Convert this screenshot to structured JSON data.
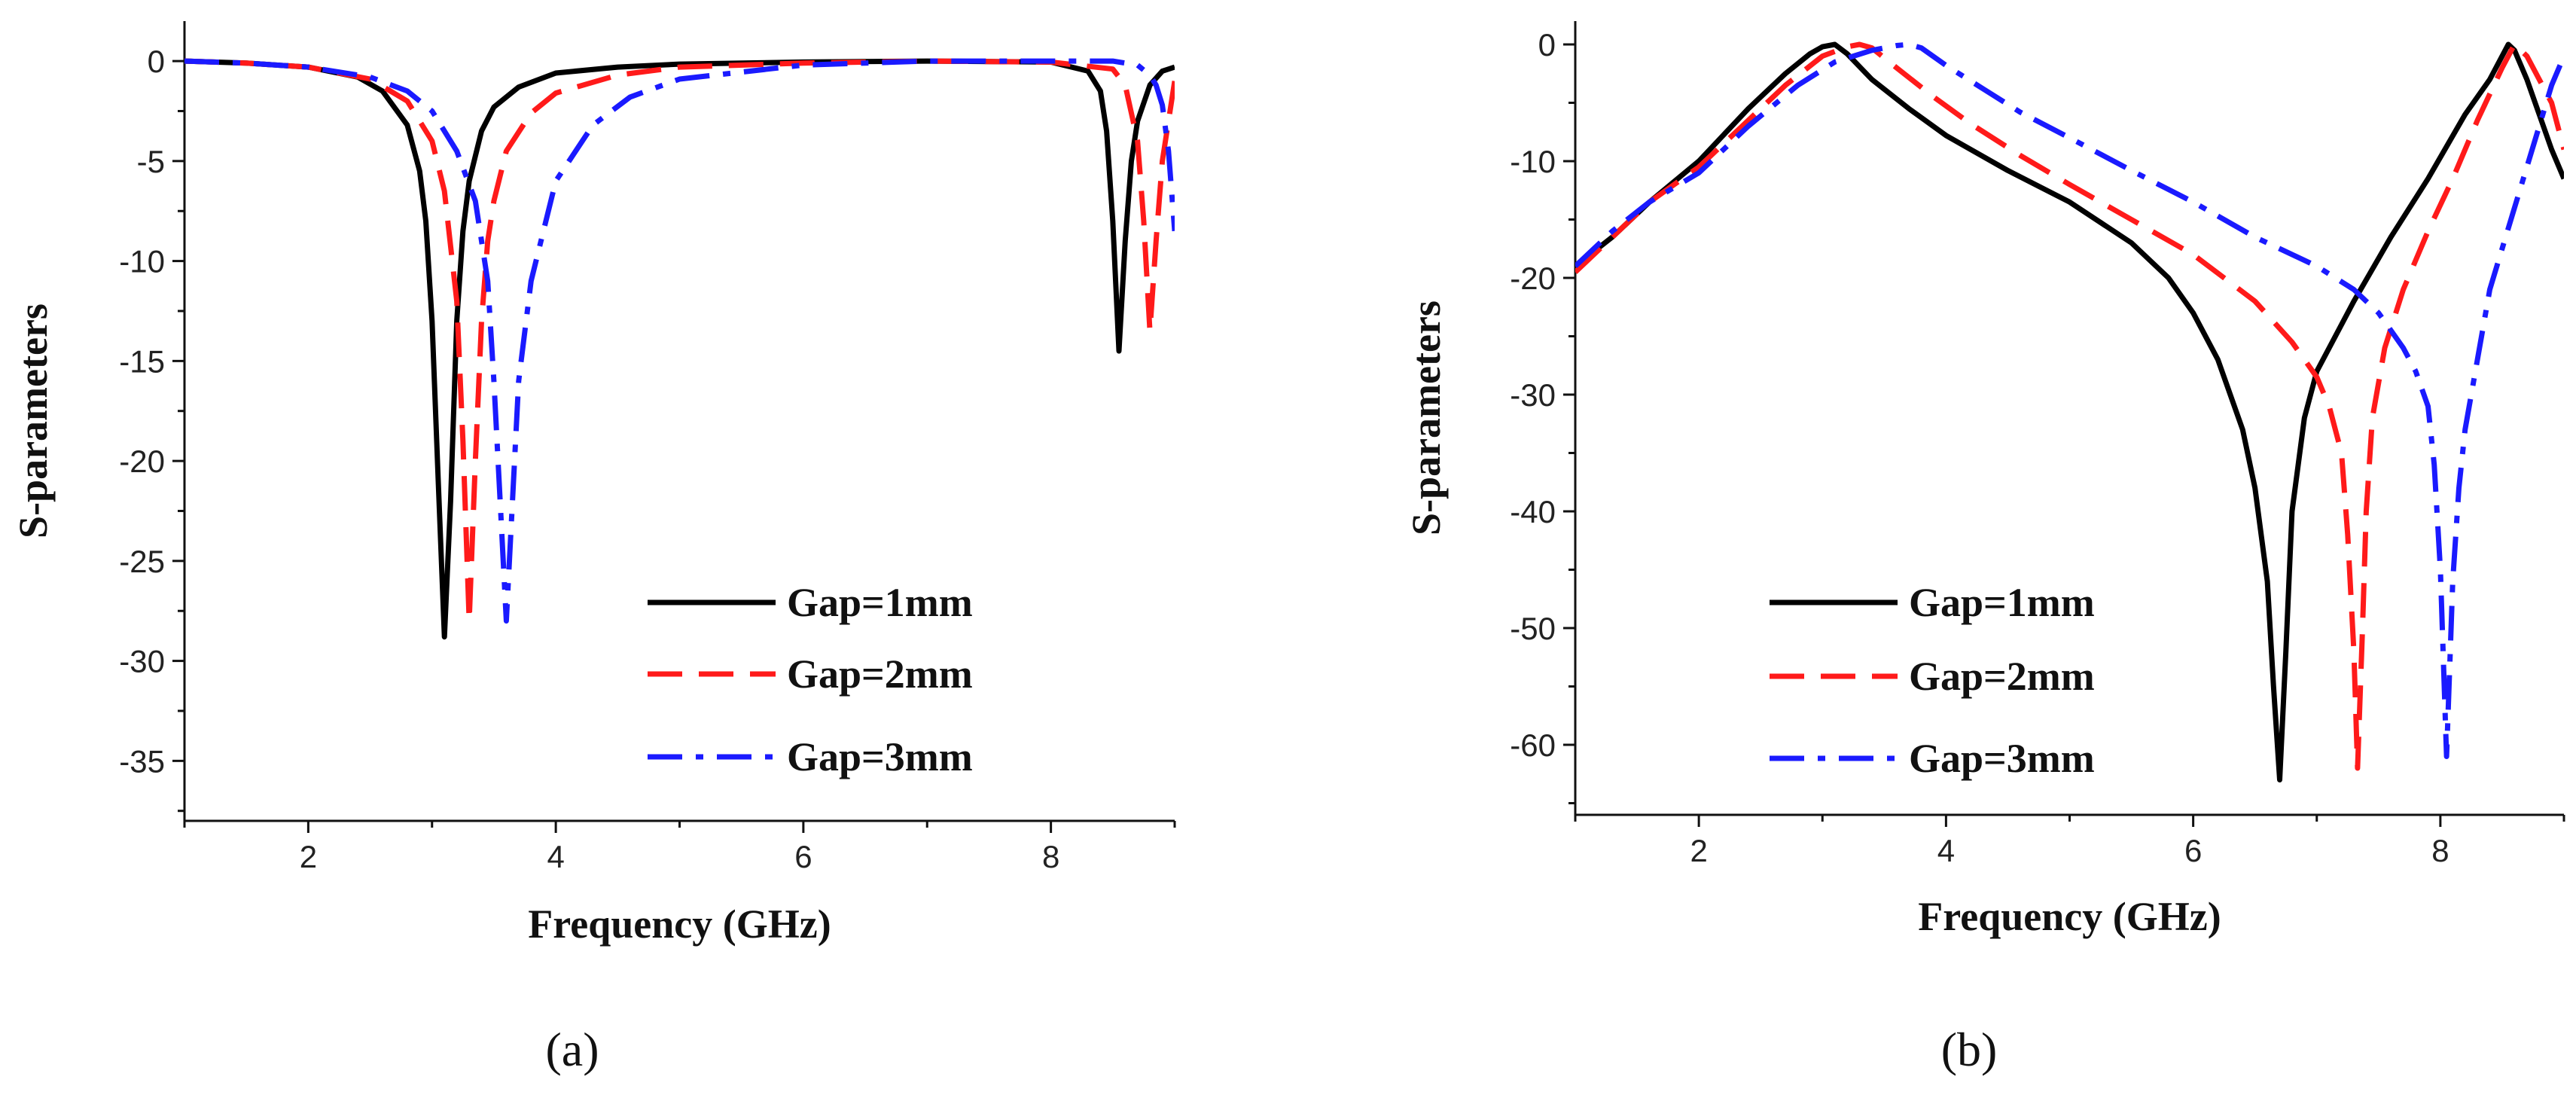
{
  "chart_data": [
    {
      "type": "line",
      "panel_label": "(a)",
      "title": "",
      "xlabel": "Frequency (GHz)",
      "ylabel": "S-parameters",
      "xlim": [
        1,
        9
      ],
      "ylim": [
        -38,
        2
      ],
      "xticks": [
        2,
        4,
        6,
        8
      ],
      "xtick_labels": [
        "2",
        "4",
        "6",
        "8"
      ],
      "yticks": [
        0,
        -5,
        -10,
        -15,
        -20,
        -25,
        -30,
        -35
      ],
      "ytick_labels": [
        "0",
        "-5",
        "-10",
        "-15",
        "-20",
        "-25",
        "-30",
        "-35"
      ],
      "grid": false,
      "legend_position": "lower-right",
      "series": [
        {
          "name": "Gap=1mm",
          "color": "#000000",
          "dash": "solid",
          "x": [
            1.0,
            1.5,
            2.0,
            2.4,
            2.6,
            2.8,
            2.9,
            2.95,
            3.0,
            3.05,
            3.1,
            3.15,
            3.2,
            3.25,
            3.3,
            3.4,
            3.5,
            3.7,
            4.0,
            4.5,
            5.0,
            6.0,
            7.0,
            8.0,
            8.3,
            8.4,
            8.45,
            8.5,
            8.55,
            8.6,
            8.65,
            8.7,
            8.8,
            8.9,
            9.0
          ],
          "y": [
            0,
            -0.1,
            -0.3,
            -0.8,
            -1.5,
            -3.2,
            -5.5,
            -8,
            -13,
            -21,
            -28.8,
            -22,
            -13,
            -8.5,
            -6,
            -3.5,
            -2.3,
            -1.3,
            -0.6,
            -0.3,
            -0.15,
            -0.05,
            0,
            -0.05,
            -0.5,
            -1.5,
            -3.5,
            -8,
            -14.5,
            -9,
            -5,
            -3,
            -1.2,
            -0.5,
            -0.3
          ]
        },
        {
          "name": "Gap=2mm",
          "color": "#ff1a1a",
          "dash": "dash",
          "x": [
            1.0,
            1.5,
            2.0,
            2.5,
            2.8,
            3.0,
            3.1,
            3.2,
            3.25,
            3.3,
            3.35,
            3.4,
            3.45,
            3.5,
            3.6,
            3.8,
            4.0,
            4.5,
            5.0,
            6.0,
            7.0,
            8.0,
            8.5,
            8.6,
            8.7,
            8.75,
            8.8,
            8.85,
            8.9,
            9.0
          ],
          "y": [
            0,
            -0.1,
            -0.3,
            -0.9,
            -2,
            -4,
            -6.5,
            -12,
            -19,
            -28,
            -20,
            -13,
            -9,
            -7,
            -4.5,
            -2.6,
            -1.6,
            -0.7,
            -0.3,
            -0.1,
            0,
            -0.05,
            -0.4,
            -1.2,
            -4,
            -8,
            -13.5,
            -9,
            -5,
            -1
          ]
        },
        {
          "name": "Gap=3mm",
          "color": "#1a1aff",
          "dash": "dashdot",
          "x": [
            1.0,
            1.5,
            2.0,
            2.5,
            2.8,
            3.0,
            3.2,
            3.35,
            3.45,
            3.5,
            3.55,
            3.6,
            3.65,
            3.7,
            3.8,
            4.0,
            4.3,
            4.6,
            5.0,
            6.0,
            7.0,
            8.0,
            8.5,
            8.7,
            8.8,
            8.85,
            8.9,
            8.95,
            9.0
          ],
          "y": [
            0,
            -0.1,
            -0.3,
            -0.8,
            -1.5,
            -2.5,
            -4.5,
            -7,
            -11,
            -16,
            -22,
            -28,
            -22,
            -16,
            -11,
            -6,
            -3.2,
            -1.8,
            -0.9,
            -0.2,
            0,
            0,
            0,
            -0.2,
            -0.7,
            -1.2,
            -2.2,
            -4.5,
            -8.5
          ]
        }
      ]
    },
    {
      "type": "line",
      "panel_label": "(b)",
      "title": "",
      "xlabel": "Frequency (GHz)",
      "ylabel": "S-parameters",
      "xlim": [
        1,
        9
      ],
      "ylim": [
        -66,
        2
      ],
      "xticks": [
        2,
        4,
        6,
        8
      ],
      "xtick_labels": [
        "2",
        "4",
        "6",
        "8"
      ],
      "yticks": [
        0,
        -10,
        -20,
        -30,
        -40,
        -50,
        -60
      ],
      "ytick_labels": [
        "0",
        "-10",
        "-20",
        "-30",
        "-40",
        "-50",
        "-60"
      ],
      "grid": false,
      "legend_position": "lower-left",
      "series": [
        {
          "name": "Gap=1mm",
          "color": "#000000",
          "dash": "solid",
          "x": [
            1.0,
            1.3,
            1.6,
            2.0,
            2.4,
            2.7,
            2.9,
            3.0,
            3.1,
            3.2,
            3.4,
            3.7,
            4.0,
            4.5,
            5.0,
            5.5,
            5.8,
            6.0,
            6.2,
            6.4,
            6.5,
            6.6,
            6.65,
            6.7,
            6.75,
            6.8,
            6.9,
            7.0,
            7.3,
            7.6,
            7.9,
            8.2,
            8.4,
            8.5,
            8.55,
            8.6,
            8.7,
            8.8,
            8.9,
            9.0
          ],
          "y": [
            -19,
            -16.5,
            -13.5,
            -10,
            -5.5,
            -2.5,
            -0.8,
            -0.2,
            0,
            -0.8,
            -3,
            -5.5,
            -7.8,
            -10.8,
            -13.5,
            -17,
            -20,
            -23,
            -27,
            -33,
            -38,
            -46,
            -55,
            -63,
            -52,
            -40,
            -32,
            -28,
            -22,
            -16.5,
            -11.5,
            -6,
            -3,
            -1,
            0,
            -0.5,
            -3,
            -6,
            -9,
            -11.5
          ]
        },
        {
          "name": "Gap=2mm",
          "color": "#ff1a1a",
          "dash": "dash",
          "x": [
            1.0,
            1.3,
            1.6,
            2.0,
            2.4,
            2.7,
            3.0,
            3.2,
            3.3,
            3.4,
            3.6,
            3.9,
            4.2,
            4.6,
            5.0,
            5.5,
            6.0,
            6.5,
            6.8,
            7.0,
            7.1,
            7.2,
            7.25,
            7.3,
            7.33,
            7.37,
            7.4,
            7.45,
            7.55,
            7.7,
            7.9,
            8.1,
            8.3,
            8.5,
            8.6,
            8.7,
            8.8,
            8.9,
            9.0
          ],
          "y": [
            -19.5,
            -16.5,
            -13.5,
            -10.5,
            -6.5,
            -3.5,
            -1,
            -0.2,
            0,
            -0.3,
            -2,
            -4.5,
            -6.8,
            -9.5,
            -12,
            -15,
            -18,
            -22,
            -25.5,
            -28.5,
            -31,
            -35,
            -42,
            -52,
            -62,
            -50,
            -40,
            -32,
            -26,
            -21,
            -16,
            -11.5,
            -6.5,
            -2,
            0,
            -1,
            -3,
            -5,
            -9
          ]
        },
        {
          "name": "Gap=3mm",
          "color": "#1a1aff",
          "dash": "dashdot",
          "x": [
            1.0,
            1.3,
            1.6,
            2.0,
            2.4,
            2.8,
            3.1,
            3.4,
            3.6,
            3.7,
            3.8,
            4.0,
            4.3,
            4.6,
            5.0,
            5.5,
            6.0,
            6.5,
            7.0,
            7.3,
            7.5,
            7.7,
            7.8,
            7.9,
            7.95,
            8.0,
            8.05,
            8.1,
            8.15,
            8.2,
            8.3,
            8.4,
            8.6,
            8.8,
            8.9,
            9.0
          ],
          "y": [
            -19,
            -16,
            -13.5,
            -11,
            -7,
            -3.5,
            -1.5,
            -0.5,
            -0.1,
            0,
            -0.3,
            -1.8,
            -3.8,
            -5.8,
            -8,
            -10.8,
            -13.5,
            -16.5,
            -19,
            -21,
            -23,
            -26,
            -28,
            -31,
            -36,
            -45,
            -61,
            -46,
            -38,
            -33,
            -27,
            -21,
            -14,
            -7,
            -3.5,
            -1
          ]
        }
      ]
    }
  ]
}
